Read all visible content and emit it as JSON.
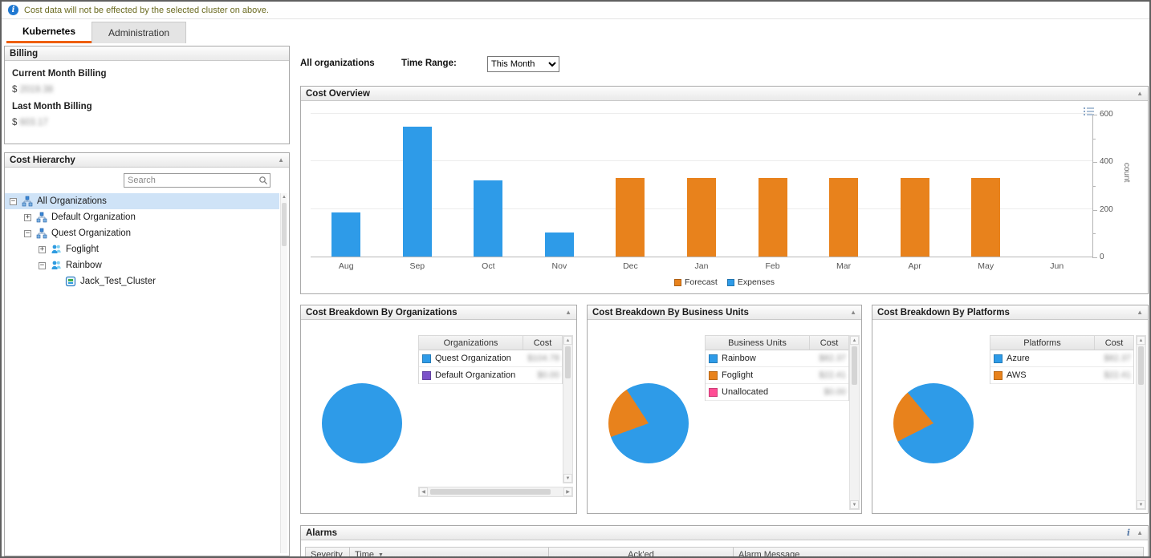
{
  "info_bar": {
    "text": "Cost data will not be effected by the selected cluster on above."
  },
  "tabs": [
    {
      "label": "Kubernetes",
      "active": true
    },
    {
      "label": "Administration",
      "active": false
    }
  ],
  "billing": {
    "title": "Billing",
    "currency_symbol": "$",
    "current_label": "Current Month Billing",
    "current_value": "2019.38",
    "last_label": "Last Month Billing",
    "last_value": "603.17"
  },
  "hierarchy": {
    "title": "Cost Hierarchy",
    "search_placeholder": "Search",
    "tree": [
      {
        "label": "All Organizations",
        "level": 0,
        "expand": "collapse",
        "icon": "organization",
        "selected": true
      },
      {
        "label": "Default Organization",
        "level": 1,
        "expand": "expand",
        "icon": "organization",
        "selected": false
      },
      {
        "label": "Quest Organization",
        "level": 1,
        "expand": "collapse",
        "icon": "organization",
        "selected": false
      },
      {
        "label": "Foglight",
        "level": 2,
        "expand": "expand",
        "icon": "business-unit",
        "selected": false
      },
      {
        "label": "Rainbow",
        "level": 2,
        "expand": "collapse",
        "icon": "business-unit",
        "selected": false
      },
      {
        "label": "Jack_Test_Cluster",
        "level": 3,
        "expand": "none",
        "icon": "cluster",
        "selected": false
      }
    ]
  },
  "toolbar": {
    "scope_label": "All organizations",
    "time_range_label": "Time Range:",
    "time_range_value": "This Month"
  },
  "chart_data": [
    {
      "type": "bar",
      "title": "Cost Overview",
      "categories": [
        "Aug",
        "Sep",
        "Oct",
        "Nov",
        "Dec",
        "Jan",
        "Feb",
        "Mar",
        "Apr",
        "May",
        "Jun"
      ],
      "series": [
        {
          "name": "Forecast",
          "color": "#e8821c",
          "values": [
            null,
            null,
            null,
            null,
            330,
            330,
            330,
            330,
            330,
            330,
            null
          ]
        },
        {
          "name": "Expenses",
          "color": "#2e9be8",
          "values": [
            185,
            545,
            320,
            100,
            null,
            null,
            null,
            null,
            null,
            null,
            null
          ]
        }
      ],
      "xlabel": "",
      "ylabel": "count",
      "ylim": [
        0,
        600
      ],
      "yticks": [
        0,
        200,
        400,
        600
      ],
      "grid": true,
      "legend_position": "bottom",
      "y_axis_side": "right"
    },
    {
      "type": "pie",
      "title": "Cost Breakdown By Organizations",
      "labels": [
        "Quest Organization",
        "Default Organization"
      ],
      "values": [
        104.78,
        0
      ],
      "colors": [
        "#2e9be8",
        "#7b52c9"
      ],
      "rotation": 0,
      "columns": [
        "Organizations",
        "Cost"
      ],
      "cost_labels": [
        "$104.78",
        "$0.00"
      ]
    },
    {
      "type": "pie",
      "title": "Cost Breakdown By Business Units",
      "labels": [
        "Rainbow",
        "Foglight",
        "Unallocated"
      ],
      "values": [
        82.37,
        22.41,
        0
      ],
      "colors": [
        "#2e9be8",
        "#e8821c",
        "#ff4d94"
      ],
      "rotation": 327,
      "columns": [
        "Business Units",
        "Cost"
      ],
      "cost_labels": [
        "$82.37",
        "$22.41",
        "$0.00"
      ]
    },
    {
      "type": "pie",
      "title": "Cost Breakdown By Platforms",
      "labels": [
        "Azure",
        "AWS"
      ],
      "values": [
        82.37,
        22.41
      ],
      "colors": [
        "#2e9be8",
        "#e8821c"
      ],
      "rotation": 320,
      "columns": [
        "Platforms",
        "Cost"
      ],
      "cost_labels": [
        "$82.37",
        "$22.41"
      ]
    }
  ],
  "alarms": {
    "title": "Alarms",
    "columns": [
      "Severity",
      "Time",
      "Ack'ed",
      "Alarm Message"
    ],
    "sorted_column": "Time",
    "sort_direction": "desc"
  },
  "colors": {
    "expenses_blue": "#2e9be8",
    "forecast_orange": "#e8821c",
    "tab_accent_orange": "#ee5f0b",
    "selected_row_blue": "#cfe3f7"
  }
}
